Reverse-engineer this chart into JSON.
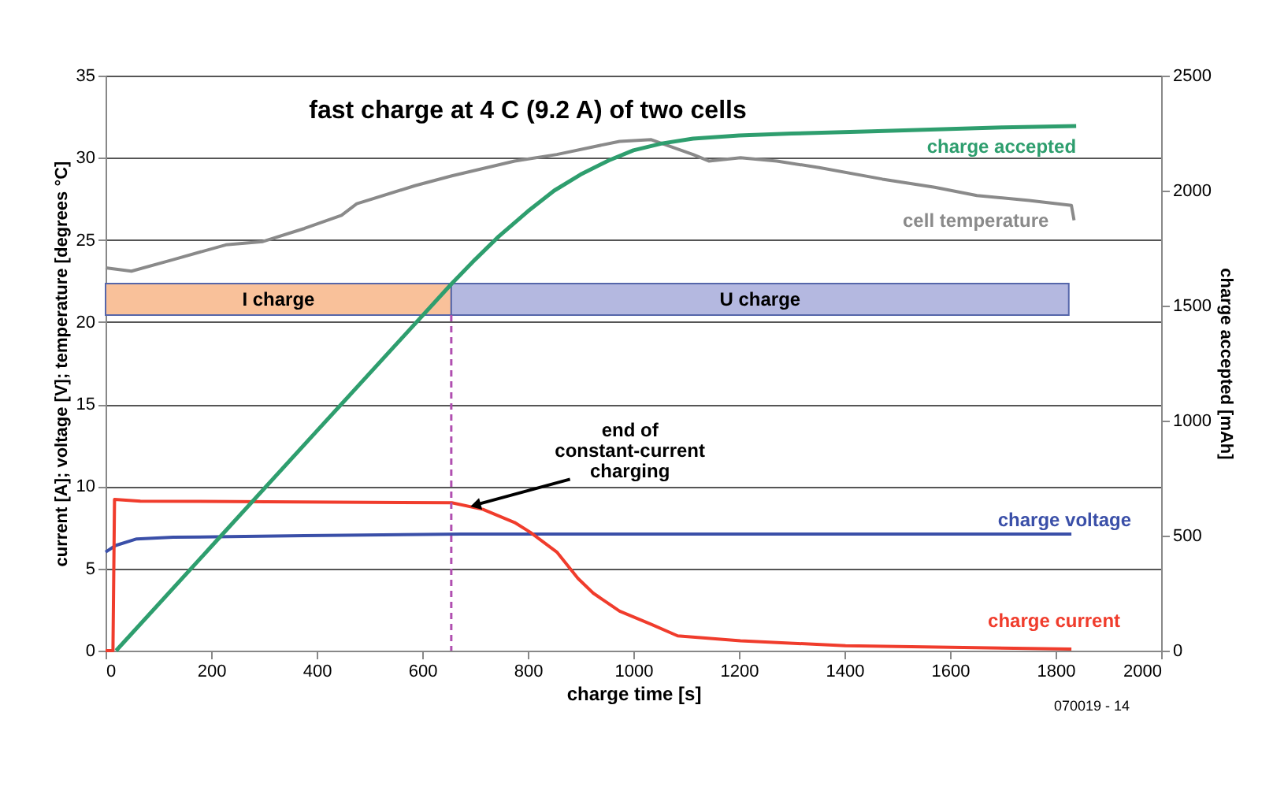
{
  "chart_data": {
    "type": "line",
    "title": "fast charge at 4 C (9.2 A) of two cells",
    "xlabel": "charge time [s]",
    "ylabel": "current [A]; voltage [V]; temperature [degrees °C]",
    "y2label": "charge accepted [mAh]",
    "xlim": [
      0,
      2000
    ],
    "xticks": [
      0,
      200,
      400,
      600,
      800,
      1000,
      1200,
      1400,
      1600,
      1800,
      2000
    ],
    "ylim": [
      0,
      35
    ],
    "yticks": [
      0,
      5,
      10,
      15,
      20,
      25,
      30,
      35
    ],
    "y2lim": [
      0,
      2500
    ],
    "y2ticks": [
      0,
      500,
      1000,
      1500,
      2000,
      2500
    ],
    "grid": "y",
    "series": [
      {
        "name": "charge accepted",
        "color": "#2e9e6e",
        "axis": "y2",
        "x": [
          20,
          200,
          400,
          656,
          700,
          745,
          800,
          850,
          900,
          954,
          1000,
          1054,
          1113,
          1200,
          1300,
          1451,
          1600,
          1700,
          1839
        ],
        "values": [
          0,
          452,
          954,
          1596,
          1700,
          1801,
          1910,
          2000,
          2070,
          2132,
          2175,
          2205,
          2226,
          2240,
          2248,
          2258,
          2268,
          2275,
          2281
        ]
      },
      {
        "name": "cell temperature",
        "color": "#8a8a8a",
        "x": [
          0,
          49,
          128,
          228,
          298,
          377,
          447,
          476,
          586,
          656,
          775,
          855,
          974,
          1034,
          1113,
          1143,
          1203,
          1272,
          1352,
          1472,
          1571,
          1651,
          1750,
          1830,
          1835
        ],
        "values": [
          23.3,
          23.1,
          23.8,
          24.7,
          24.9,
          25.7,
          26.5,
          27.2,
          28.3,
          28.9,
          29.8,
          30.2,
          31.0,
          31.1,
          30.2,
          29.8,
          30.0,
          29.8,
          29.4,
          28.7,
          28.2,
          27.7,
          27.4,
          27.1,
          26.2
        ]
      },
      {
        "name": "charge voltage",
        "color": "#3a4fa8",
        "x": [
          0,
          19,
          59,
          128,
          377,
          675,
          1113,
          1830
        ],
        "values": [
          6.0,
          6.4,
          6.8,
          6.9,
          7.0,
          7.1,
          7.1,
          7.1
        ]
      },
      {
        "name": "charge current",
        "color": "#f03c2c",
        "x": [
          0,
          14,
          17,
          66,
          656,
          715,
          775,
          805,
          855,
          895,
          924,
          974,
          1034,
          1084,
          1203,
          1402,
          1601,
          1830
        ],
        "values": [
          0,
          0,
          9.2,
          9.1,
          9.0,
          8.6,
          7.8,
          7.2,
          6.0,
          4.4,
          3.5,
          2.4,
          1.6,
          0.9,
          0.6,
          0.3,
          0.2,
          0.1
        ]
      }
    ],
    "ref_lines": [
      {
        "axis": "x",
        "value": 655,
        "color": "#b04fb0",
        "line_style": "dashed"
      }
    ],
    "bands": [
      {
        "axis": "x",
        "from": 0,
        "to": 655,
        "label": "I charge",
        "color": "#f9c19a"
      },
      {
        "axis": "x",
        "from": 655,
        "to": 1825,
        "label": "U charge",
        "color": "#b4b8e0"
      }
    ],
    "annotations": [
      {
        "text": "end of\nconstant-current\ncharging",
        "x": 695,
        "y": 8.9
      },
      "070019 - 14"
    ]
  }
}
